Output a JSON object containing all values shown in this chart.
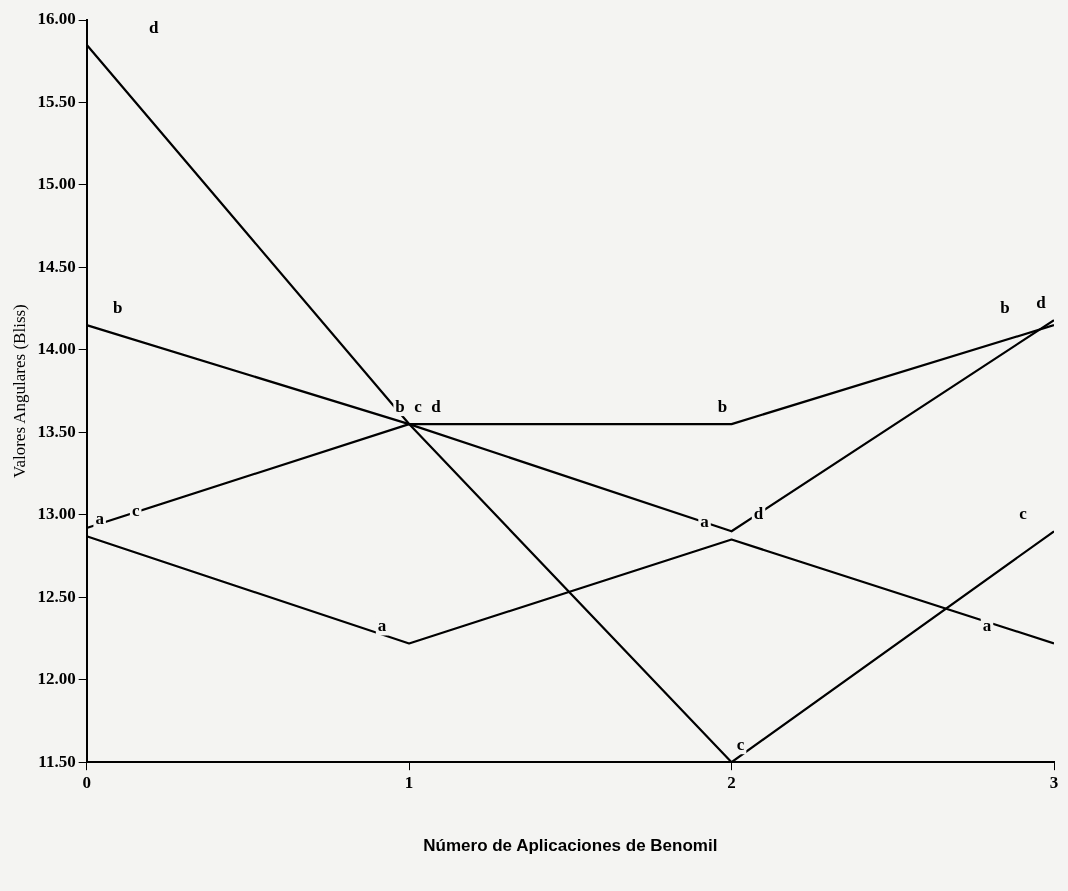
{
  "chart_data": {
    "type": "line",
    "xlabel": "Número de Aplicaciones de Benomil",
    "ylabel": "Valores Angulares (Bliss)",
    "x": [
      0,
      1,
      2,
      3
    ],
    "series": [
      {
        "name": "a",
        "color": "#000000",
        "values": [
          12.87,
          12.22,
          12.85,
          12.22
        ]
      },
      {
        "name": "b",
        "color": "#000000",
        "values": [
          14.15,
          13.55,
          13.55,
          14.15
        ]
      },
      {
        "name": "c",
        "color": "#000000",
        "values": [
          12.92,
          13.55,
          11.5,
          12.9
        ]
      },
      {
        "name": "d",
        "color": "#000000",
        "values": [
          15.85,
          13.55,
          12.9,
          14.18
        ]
      }
    ],
    "xlim": [
      0,
      3
    ],
    "xticks": [
      0,
      1,
      2,
      3
    ],
    "ylim": [
      11.5,
      16
    ],
    "yticks": [
      {
        "value": 11.5,
        "label": "11.50"
      },
      {
        "value": 12,
        "label": "12.00"
      },
      {
        "value": 12.5,
        "label": "12.50"
      },
      {
        "value": 13,
        "label": "13.00"
      },
      {
        "value": 13.5,
        "label": "13.50"
      },
      {
        "value": 14,
        "label": "14.00"
      },
      {
        "value": 14.5,
        "label": "14.50"
      },
      {
        "value": 15,
        "label": "15.00"
      },
      {
        "value": 15.5,
        "label": "15.50"
      },
      {
        "value": 16,
        "label": "16.00"
      }
    ],
    "grid": false,
    "legend": false,
    "marker": "none",
    "line_style": "solid"
  }
}
